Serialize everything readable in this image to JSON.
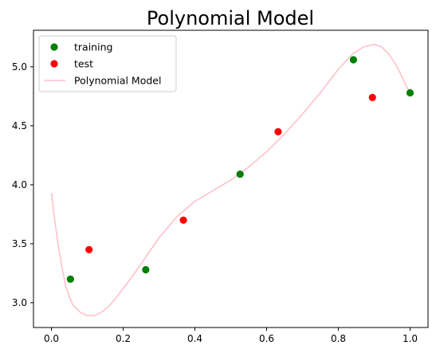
{
  "chart_data": {
    "type": "scatter",
    "title": "Polynomial Model",
    "xlabel": "",
    "ylabel": "",
    "xlim": [
      -0.05,
      1.05
    ],
    "ylim": [
      2.79,
      5.31
    ],
    "x_ticks": [
      0.0,
      0.2,
      0.4,
      0.6,
      0.8,
      1.0
    ],
    "x_tick_labels": [
      "0.0",
      "0.2",
      "0.4",
      "0.6",
      "0.8",
      "1.0"
    ],
    "y_ticks": [
      3.0,
      3.5,
      4.0,
      4.5,
      5.0
    ],
    "y_tick_labels": [
      "3.0",
      "3.5",
      "4.0",
      "4.5",
      "5.0"
    ],
    "grid": false,
    "legend_position": "top-left",
    "series": [
      {
        "name": "training",
        "kind": "scatter",
        "color": "#008000",
        "x": [
          0.053,
          0.263,
          0.526,
          0.842,
          1.0
        ],
        "y": [
          3.2,
          3.28,
          4.09,
          5.06,
          4.78
        ]
      },
      {
        "name": "test",
        "kind": "scatter",
        "color": "#ff0000",
        "x": [
          0.105,
          0.368,
          0.632,
          0.895
        ],
        "y": [
          3.45,
          3.7,
          4.45,
          4.74
        ]
      },
      {
        "name": "Polynomial Model",
        "kind": "line",
        "color": "#ffc0cb",
        "x": [
          0.0,
          0.01,
          0.02,
          0.03,
          0.04,
          0.05,
          0.06,
          0.08,
          0.1,
          0.12,
          0.14,
          0.16,
          0.18,
          0.2,
          0.22,
          0.25,
          0.3,
          0.35,
          0.4,
          0.45,
          0.5,
          0.55,
          0.6,
          0.65,
          0.7,
          0.75,
          0.8,
          0.84,
          0.87,
          0.9,
          0.92,
          0.94,
          0.96,
          0.98,
          1.0
        ],
        "y": [
          3.93,
          3.68,
          3.47,
          3.29,
          3.14,
          3.05,
          2.98,
          2.92,
          2.89,
          2.89,
          2.92,
          2.97,
          3.04,
          3.12,
          3.2,
          3.33,
          3.55,
          3.73,
          3.86,
          3.95,
          4.04,
          4.15,
          4.28,
          4.43,
          4.6,
          4.78,
          4.98,
          5.11,
          5.17,
          5.19,
          5.17,
          5.11,
          5.02,
          4.9,
          4.77
        ]
      }
    ]
  }
}
